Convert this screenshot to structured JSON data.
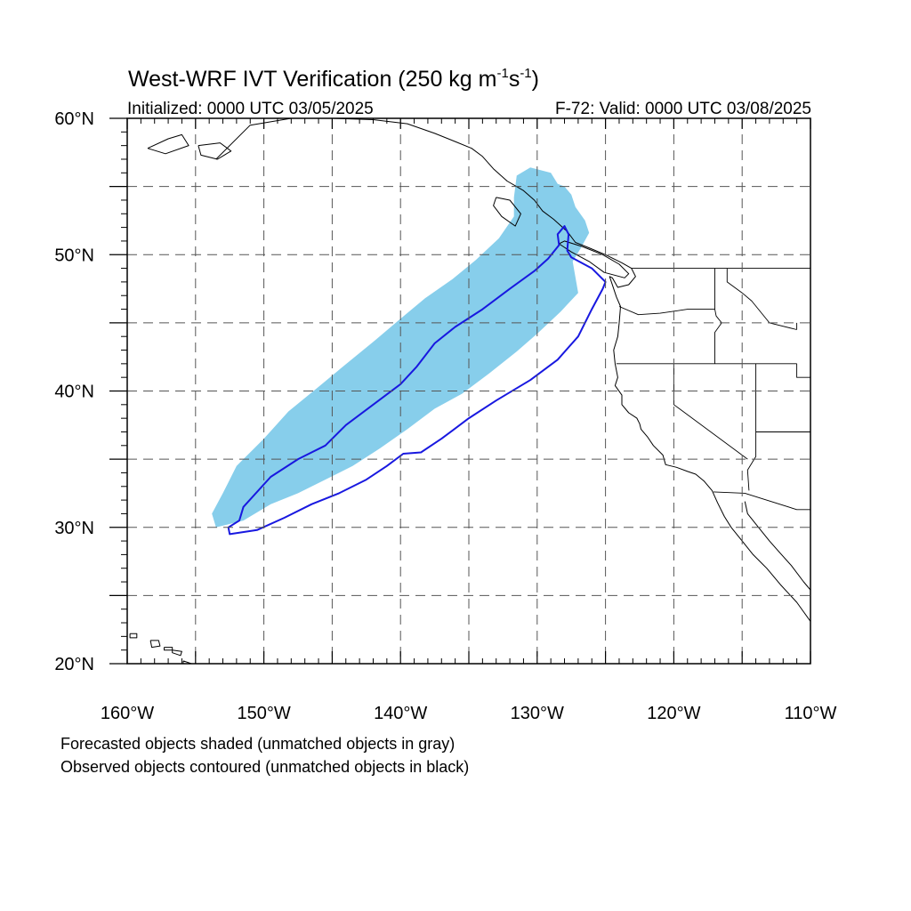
{
  "header": {
    "title_main": "West-WRF IVT Verification (250 kg m",
    "title_exp1": "-1",
    "title_mid": "s",
    "title_exp2": "-1",
    "title_close": ")",
    "initialized": "Initialized: 0000 UTC 03/05/2025",
    "valid": "F-72: Valid: 0000 UTC 03/08/2025"
  },
  "axes": {
    "lon_range": [
      -160,
      -110
    ],
    "lat_range": [
      20,
      60
    ],
    "lon_ticks": [
      {
        "value": -160,
        "label": "160°W"
      },
      {
        "value": -150,
        "label": "150°W"
      },
      {
        "value": -140,
        "label": "140°W"
      },
      {
        "value": -130,
        "label": "130°W"
      },
      {
        "value": -120,
        "label": "120°W"
      },
      {
        "value": -110,
        "label": "110°W"
      }
    ],
    "lat_ticks": [
      {
        "value": 20,
        "label": "20°N"
      },
      {
        "value": 30,
        "label": "30°N"
      },
      {
        "value": 40,
        "label": "40°N"
      },
      {
        "value": 50,
        "label": "50°N"
      },
      {
        "value": 60,
        "label": "60°N"
      }
    ],
    "grid_lon": [
      -155,
      -150,
      -145,
      -140,
      -135,
      -130,
      -125,
      -120,
      -115
    ],
    "grid_lat": [
      25,
      30,
      35,
      40,
      45,
      50,
      55
    ],
    "grid": true,
    "grid_style": "dashed"
  },
  "forecast_object": {
    "fill_color": "#87ceeb",
    "polygon": [
      [
        -153.5,
        30.0
      ],
      [
        -151.5,
        30.5
      ],
      [
        -149.5,
        31.7
      ],
      [
        -147.5,
        32.5
      ],
      [
        -145.5,
        33.5
      ],
      [
        -143.5,
        34.5
      ],
      [
        -141.5,
        35.8
      ],
      [
        -139.5,
        37.2
      ],
      [
        -137.5,
        38.7
      ],
      [
        -135.5,
        39.8
      ],
      [
        -133.5,
        41.3
      ],
      [
        -131.5,
        42.9
      ],
      [
        -130.0,
        44.2
      ],
      [
        -128.3,
        45.8
      ],
      [
        -127.0,
        47.2
      ],
      [
        -127.4,
        49.5
      ],
      [
        -126.8,
        50.5
      ],
      [
        -126.2,
        51.6
      ],
      [
        -126.5,
        52.5
      ],
      [
        -127.2,
        53.5
      ],
      [
        -127.5,
        54.4
      ],
      [
        -128.0,
        55.0
      ],
      [
        -128.5,
        55.2
      ],
      [
        -129.0,
        56.0
      ],
      [
        -130.5,
        56.4
      ],
      [
        -131.5,
        55.8
      ],
      [
        -131.7,
        54.2
      ],
      [
        -131.7,
        52.8
      ],
      [
        -132.8,
        51.2
      ],
      [
        -134.5,
        49.6
      ],
      [
        -136.2,
        48.2
      ],
      [
        -138.2,
        46.8
      ],
      [
        -140.0,
        45.3
      ],
      [
        -142.0,
        43.6
      ],
      [
        -144.2,
        41.8
      ],
      [
        -146.0,
        40.3
      ],
      [
        -148.2,
        38.5
      ],
      [
        -150.0,
        36.5
      ],
      [
        -152.0,
        34.5
      ],
      [
        -153.0,
        32.5
      ],
      [
        -153.8,
        31.0
      ]
    ]
  },
  "observed_object": {
    "stroke_color": "#1818e0",
    "polygon": [
      [
        -152.5,
        29.5
      ],
      [
        -150.5,
        29.8
      ],
      [
        -148.5,
        30.7
      ],
      [
        -146.5,
        31.7
      ],
      [
        -144.5,
        32.5
      ],
      [
        -142.5,
        33.5
      ],
      [
        -141.0,
        34.5
      ],
      [
        -139.8,
        35.4
      ],
      [
        -138.5,
        35.5
      ],
      [
        -137.0,
        36.5
      ],
      [
        -135.0,
        38.0
      ],
      [
        -133.0,
        39.3
      ],
      [
        -130.5,
        40.8
      ],
      [
        -128.5,
        42.3
      ],
      [
        -127.0,
        44.0
      ],
      [
        -126.0,
        46.0
      ],
      [
        -125.2,
        47.5
      ],
      [
        -125.0,
        48.0
      ],
      [
        -126.0,
        49.0
      ],
      [
        -127.5,
        49.8
      ],
      [
        -127.8,
        50.3
      ],
      [
        -127.7,
        51.5
      ],
      [
        -128.0,
        52.1
      ],
      [
        -128.5,
        51.5
      ],
      [
        -128.4,
        50.7
      ],
      [
        -129.2,
        49.7
      ],
      [
        -130.2,
        48.8
      ],
      [
        -132.0,
        47.5
      ],
      [
        -134.0,
        46.0
      ],
      [
        -136.0,
        44.7
      ],
      [
        -137.5,
        43.5
      ],
      [
        -138.8,
        41.8
      ],
      [
        -140.0,
        40.5
      ],
      [
        -142.0,
        39.0
      ],
      [
        -144.0,
        37.5
      ],
      [
        -145.5,
        36.0
      ],
      [
        -147.5,
        35.0
      ],
      [
        -149.5,
        33.7
      ],
      [
        -151.5,
        31.5
      ],
      [
        -151.8,
        30.5
      ],
      [
        -152.6,
        30.0
      ]
    ]
  },
  "basemap": {
    "line_color": "#000000",
    "coastline": [
      [
        -153.5,
        57.0
      ],
      [
        -151.0,
        59.5
      ],
      [
        -148.0,
        60.0
      ],
      [
        -145.0,
        60.0
      ],
      [
        -142.0,
        59.9
      ],
      [
        -139.5,
        59.6
      ],
      [
        -137.5,
        58.9
      ],
      [
        -136.0,
        58.3
      ],
      [
        -134.8,
        57.8
      ],
      [
        -134.0,
        57.2
      ],
      [
        -133.2,
        56.3
      ],
      [
        -132.2,
        55.4
      ],
      [
        -131.0,
        54.7
      ],
      [
        -130.2,
        54.0
      ],
      [
        -129.6,
        53.2
      ],
      [
        -128.8,
        52.6
      ],
      [
        -127.8,
        51.7
      ],
      [
        -127.2,
        50.9
      ],
      [
        -126.2,
        50.5
      ],
      [
        -125.0,
        50.0
      ],
      [
        -123.8,
        49.4
      ],
      [
        -123.1,
        49.0
      ],
      [
        -122.8,
        48.4
      ],
      [
        -123.3,
        47.8
      ],
      [
        -124.1,
        47.6
      ],
      [
        -124.5,
        48.3
      ],
      [
        -124.7,
        48.4
      ],
      [
        -124.2,
        46.9
      ],
      [
        -123.9,
        46.2
      ],
      [
        -124.0,
        45.0
      ],
      [
        -124.1,
        44.0
      ],
      [
        -124.4,
        43.0
      ],
      [
        -124.3,
        42.0
      ],
      [
        -124.1,
        41.0
      ],
      [
        -124.3,
        40.4
      ],
      [
        -123.8,
        39.7
      ],
      [
        -123.8,
        39.0
      ],
      [
        -123.3,
        38.4
      ],
      [
        -122.7,
        38.0
      ],
      [
        -122.5,
        37.6
      ],
      [
        -122.4,
        37.2
      ],
      [
        -121.9,
        36.6
      ],
      [
        -121.5,
        36.0
      ],
      [
        -120.8,
        35.3
      ],
      [
        -120.6,
        34.6
      ],
      [
        -119.8,
        34.4
      ],
      [
        -119.0,
        34.1
      ],
      [
        -118.4,
        33.9
      ],
      [
        -117.8,
        33.4
      ],
      [
        -117.2,
        32.7
      ],
      [
        -116.8,
        31.8
      ],
      [
        -116.3,
        30.8
      ],
      [
        -115.8,
        30.0
      ],
      [
        -115.0,
        29.0
      ],
      [
        -114.2,
        28.0
      ],
      [
        -113.2,
        27.0
      ],
      [
        -112.2,
        25.8
      ],
      [
        -111.0,
        24.5
      ],
      [
        -110.0,
        23.1
      ]
    ],
    "gulf_coast": [
      [
        -114.8,
        31.9
      ],
      [
        -114.6,
        31.0
      ],
      [
        -113.8,
        30.0
      ],
      [
        -113.0,
        29.0
      ],
      [
        -112.3,
        28.2
      ],
      [
        -111.4,
        27.2
      ],
      [
        -110.5,
        26.0
      ],
      [
        -110.0,
        25.4
      ]
    ],
    "vancouver_island": [
      [
        -128.4,
        50.8
      ],
      [
        -127.5,
        50.2
      ],
      [
        -126.2,
        49.5
      ],
      [
        -125.1,
        48.7
      ],
      [
        -123.6,
        48.3
      ],
      [
        -123.3,
        48.6
      ],
      [
        -124.0,
        49.3
      ],
      [
        -125.2,
        50.0
      ],
      [
        -126.7,
        50.6
      ],
      [
        -128.0,
        51.0
      ],
      [
        -128.4,
        50.8
      ]
    ],
    "haida_gwaii": [
      [
        -133.0,
        54.2
      ],
      [
        -132.0,
        54.0
      ],
      [
        -131.2,
        53.0
      ],
      [
        -131.6,
        52.1
      ],
      [
        -132.6,
        52.8
      ],
      [
        -133.2,
        53.6
      ],
      [
        -133.0,
        54.2
      ]
    ],
    "hawaii_islands": [
      [
        [
          -159.8,
          22.2
        ],
        [
          -159.3,
          22.2
        ],
        [
          -159.3,
          21.9
        ],
        [
          -159.8,
          21.9
        ],
        [
          -159.8,
          22.2
        ]
      ],
      [
        [
          -158.3,
          21.7
        ],
        [
          -157.7,
          21.7
        ],
        [
          -157.6,
          21.3
        ],
        [
          -158.2,
          21.2
        ],
        [
          -158.3,
          21.7
        ]
      ],
      [
        [
          -157.3,
          21.2
        ],
        [
          -156.7,
          21.2
        ],
        [
          -156.7,
          21.0
        ],
        [
          -157.3,
          21.0
        ],
        [
          -157.3,
          21.2
        ]
      ],
      [
        [
          -156.7,
          21.0
        ],
        [
          -156.0,
          20.9
        ],
        [
          -156.1,
          20.6
        ],
        [
          -156.7,
          20.8
        ],
        [
          -156.7,
          21.0
        ]
      ],
      [
        [
          -155.9,
          20.2
        ],
        [
          -155.0,
          19.9
        ],
        [
          -155.0,
          19.6
        ],
        [
          -155.6,
          19.4
        ],
        [
          -155.9,
          19.7
        ],
        [
          -155.9,
          20.2
        ]
      ]
    ],
    "alaska_islands": [
      [
        [
          -154.8,
          58.0
        ],
        [
          -153.2,
          58.2
        ],
        [
          -152.4,
          57.6
        ],
        [
          -153.4,
          57.0
        ],
        [
          -154.6,
          57.3
        ],
        [
          -154.8,
          58.0
        ]
      ],
      [
        [
          -158.5,
          57.8
        ],
        [
          -157.0,
          58.5
        ],
        [
          -156.0,
          58.8
        ],
        [
          -155.5,
          58.0
        ],
        [
          -157.2,
          57.4
        ],
        [
          -158.5,
          57.8
        ]
      ]
    ],
    "borders": [
      [
        [
          -123.1,
          49.0
        ],
        [
          -110.0,
          49.0
        ]
      ],
      [
        [
          -124.2,
          42.0
        ],
        [
          -111.0,
          42.0
        ]
      ],
      [
        [
          -120.0,
          42.0
        ],
        [
          -120.0,
          39.0
        ],
        [
          -114.6,
          35.0
        ]
      ],
      [
        [
          -117.1,
          32.6
        ],
        [
          -114.8,
          32.5
        ],
        [
          -111.0,
          31.3
        ],
        [
          -110.0,
          31.3
        ]
      ],
      [
        [
          -117.0,
          49.0
        ],
        [
          -117.0,
          46.0
        ],
        [
          -116.9,
          45.5
        ],
        [
          -116.5,
          45.0
        ],
        [
          -117.0,
          44.3
        ],
        [
          -117.0,
          42.0
        ]
      ],
      [
        [
          -124.0,
          46.2
        ],
        [
          -122.6,
          45.6
        ],
        [
          -121.0,
          45.7
        ],
        [
          -119.0,
          46.0
        ],
        [
          -117.0,
          46.0
        ]
      ],
      [
        [
          -116.1,
          49.0
        ],
        [
          -116.1,
          48.0
        ],
        [
          -115.0,
          47.2
        ],
        [
          -114.3,
          46.6
        ],
        [
          -113.0,
          45.0
        ],
        [
          -111.0,
          44.5
        ]
      ],
      [
        [
          -114.0,
          42.0
        ],
        [
          -114.0,
          35.2
        ],
        [
          -114.6,
          34.2
        ],
        [
          -114.5,
          32.7
        ]
      ],
      [
        [
          -111.0,
          45.0
        ],
        [
          -111.0,
          44.5
        ]
      ],
      [
        [
          -111.0,
          42.0
        ],
        [
          -111.0,
          41.0
        ],
        [
          -110.0,
          41.0
        ]
      ],
      [
        [
          -114.0,
          37.0
        ],
        [
          -110.0,
          37.0
        ]
      ]
    ]
  },
  "footnotes": {
    "line1": "Forecasted objects shaded (unmatched objects in gray)",
    "line2": "Observed objects contoured (unmatched objects in black)"
  }
}
